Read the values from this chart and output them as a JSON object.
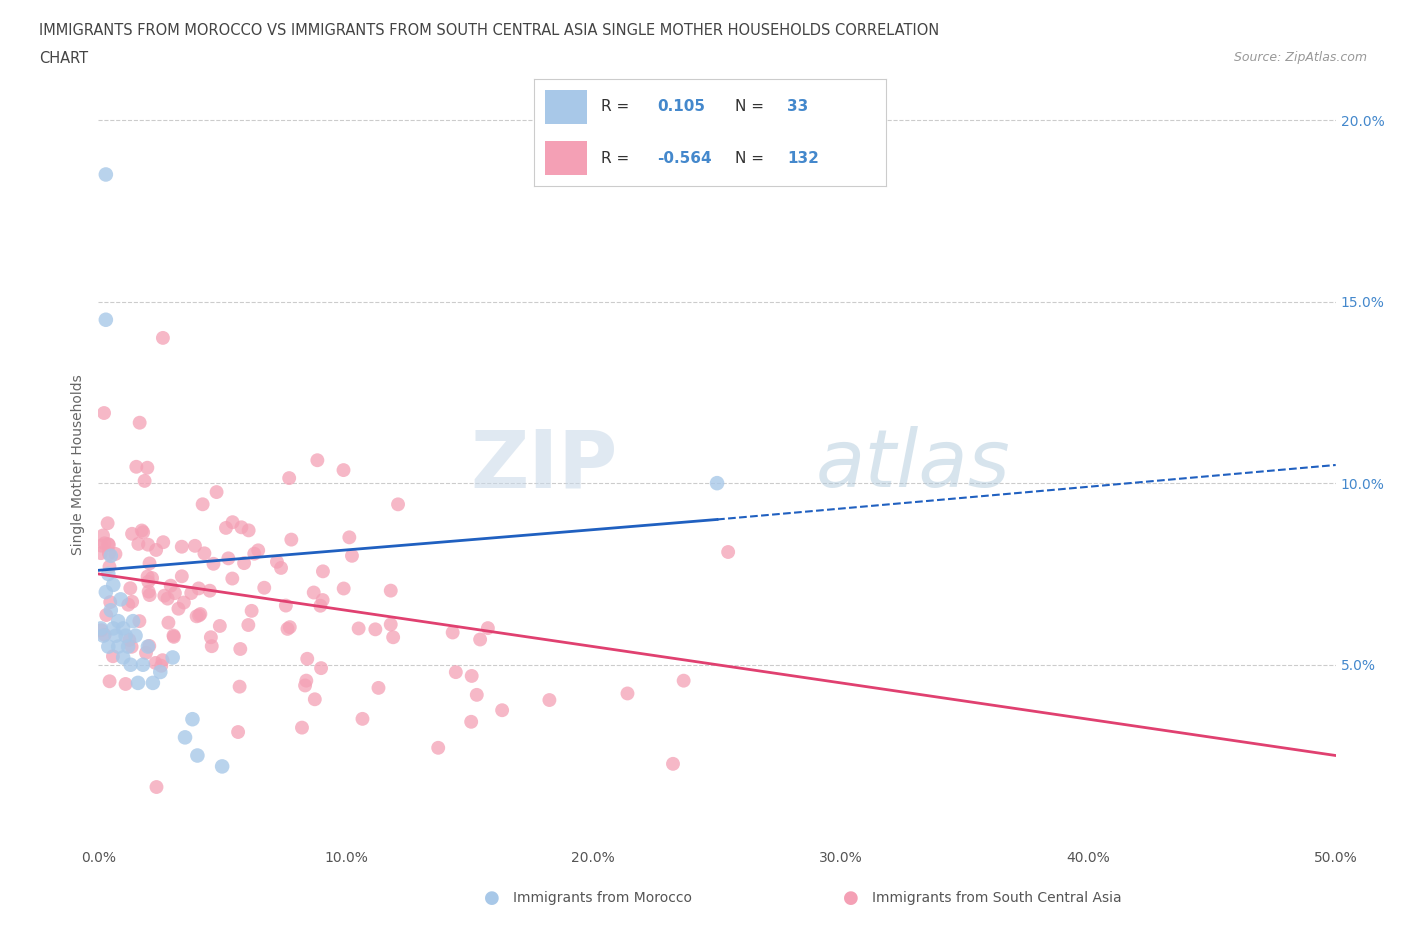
{
  "title_line1": "IMMIGRANTS FROM MOROCCO VS IMMIGRANTS FROM SOUTH CENTRAL ASIA SINGLE MOTHER HOUSEHOLDS CORRELATION",
  "title_line2": "CHART",
  "source": "Source: ZipAtlas.com",
  "ylabel": "Single Mother Households",
  "legend_label1": "Immigrants from Morocco",
  "legend_label2": "Immigrants from South Central Asia",
  "R1": 0.105,
  "N1": 33,
  "R2": -0.564,
  "N2": 132,
  "color_blue": "#a8c8e8",
  "color_pink": "#f4a0b5",
  "line_color_blue": "#2060c0",
  "line_color_pink": "#e04070",
  "xlim": [
    0.0,
    0.5
  ],
  "ylim": [
    0.0,
    0.21
  ],
  "watermark_zip": "ZIP",
  "watermark_atlas": "atlas"
}
